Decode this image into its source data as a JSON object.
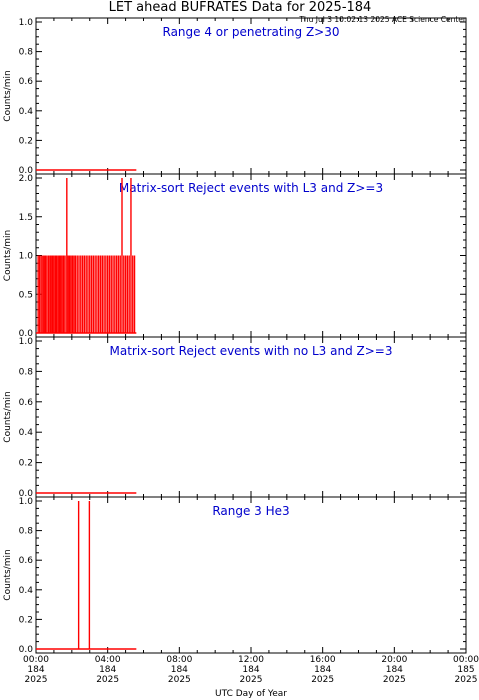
{
  "header": {
    "title": "LET ahead BUFRATES Data for 2025-184",
    "timestamp": "Thu Jul  3 10:02:13 2025 ACE Science Center"
  },
  "x_axis": {
    "label": "UTC Day of Year",
    "ticks": [
      {
        "time": "00:00",
        "day": "184",
        "year": "2025"
      },
      {
        "time": "04:00",
        "day": "184",
        "year": "2025"
      },
      {
        "time": "08:00",
        "day": "184",
        "year": "2025"
      },
      {
        "time": "12:00",
        "day": "184",
        "year": "2025"
      },
      {
        "time": "16:00",
        "day": "184",
        "year": "2025"
      },
      {
        "time": "20:00",
        "day": "184",
        "year": "2025"
      },
      {
        "time": "00:00",
        "day": "185",
        "year": "2025"
      }
    ]
  },
  "colors": {
    "data": "#ff0000",
    "panel_title": "#0000cc",
    "axes": "#000000"
  },
  "chart_data": [
    {
      "type": "line",
      "title": "Range 4 or   penetrating Z>30",
      "ylabel": "Counts/min",
      "ylim": [
        0,
        1
      ],
      "yticks": [
        "0.0",
        "0.2",
        "0.4",
        "0.6",
        "0.8",
        "1.0"
      ],
      "xlim_hours": [
        0,
        24
      ],
      "series": [
        {
          "segments": [
            [
              [
                0.0,
                0
              ],
              [
                5.6,
                0
              ]
            ]
          ],
          "spikes": []
        }
      ]
    },
    {
      "type": "line",
      "title": "Matrix-sort Reject events with L3 and Z>=3",
      "ylabel": "Counts/min",
      "ylim": [
        0,
        2
      ],
      "yticks": [
        "0.0",
        "0.5",
        "1.0",
        "1.5",
        "2.0"
      ],
      "xlim_hours": [
        0,
        24
      ],
      "series": [
        {
          "segments": [
            [
              [
                0.0,
                0
              ],
              [
                5.6,
                0
              ]
            ]
          ],
          "spikes": [
            {
              "x": 0.12,
              "y": 1
            },
            {
              "x": 0.2,
              "y": 1
            },
            {
              "x": 0.29,
              "y": 1
            },
            {
              "x": 0.38,
              "y": 1
            },
            {
              "x": 0.46,
              "y": 1
            },
            {
              "x": 0.53,
              "y": 1
            },
            {
              "x": 0.61,
              "y": 1
            },
            {
              "x": 0.7,
              "y": 1
            },
            {
              "x": 0.78,
              "y": 1
            },
            {
              "x": 0.85,
              "y": 1
            },
            {
              "x": 0.93,
              "y": 1
            },
            {
              "x": 1.0,
              "y": 1
            },
            {
              "x": 1.08,
              "y": 1
            },
            {
              "x": 1.15,
              "y": 1
            },
            {
              "x": 1.23,
              "y": 1
            },
            {
              "x": 1.3,
              "y": 1
            },
            {
              "x": 1.38,
              "y": 1
            },
            {
              "x": 1.46,
              "y": 1
            },
            {
              "x": 1.54,
              "y": 1
            },
            {
              "x": 1.62,
              "y": 1
            },
            {
              "x": 1.72,
              "y": 2
            },
            {
              "x": 1.8,
              "y": 1
            },
            {
              "x": 1.88,
              "y": 1
            },
            {
              "x": 1.96,
              "y": 1
            },
            {
              "x": 2.04,
              "y": 1
            },
            {
              "x": 2.12,
              "y": 1
            },
            {
              "x": 2.2,
              "y": 1
            },
            {
              "x": 2.3,
              "y": 1
            },
            {
              "x": 2.4,
              "y": 1
            },
            {
              "x": 2.5,
              "y": 1
            },
            {
              "x": 2.6,
              "y": 1
            },
            {
              "x": 2.7,
              "y": 1
            },
            {
              "x": 2.8,
              "y": 1
            },
            {
              "x": 2.9,
              "y": 1
            },
            {
              "x": 3.0,
              "y": 1
            },
            {
              "x": 3.1,
              "y": 1
            },
            {
              "x": 3.2,
              "y": 1
            },
            {
              "x": 3.3,
              "y": 1
            },
            {
              "x": 3.4,
              "y": 1
            },
            {
              "x": 3.5,
              "y": 1
            },
            {
              "x": 3.6,
              "y": 1
            },
            {
              "x": 3.7,
              "y": 1
            },
            {
              "x": 3.8,
              "y": 1
            },
            {
              "x": 3.9,
              "y": 1
            },
            {
              "x": 4.0,
              "y": 1
            },
            {
              "x": 4.1,
              "y": 1
            },
            {
              "x": 4.2,
              "y": 1
            },
            {
              "x": 4.3,
              "y": 1
            },
            {
              "x": 4.4,
              "y": 1
            },
            {
              "x": 4.5,
              "y": 1
            },
            {
              "x": 4.6,
              "y": 1
            },
            {
              "x": 4.7,
              "y": 1
            },
            {
              "x": 4.8,
              "y": 2
            },
            {
              "x": 4.9,
              "y": 1
            },
            {
              "x": 5.0,
              "y": 1
            },
            {
              "x": 5.1,
              "y": 1
            },
            {
              "x": 5.2,
              "y": 1
            },
            {
              "x": 5.3,
              "y": 2
            },
            {
              "x": 5.4,
              "y": 1
            },
            {
              "x": 5.5,
              "y": 1
            }
          ]
        }
      ]
    },
    {
      "type": "line",
      "title": "Matrix-sort Reject events with no L3 and Z>=3",
      "ylabel": "Counts/min",
      "ylim": [
        0,
        1
      ],
      "yticks": [
        "0.0",
        "0.2",
        "0.4",
        "0.6",
        "0.8",
        "1.0"
      ],
      "xlim_hours": [
        0,
        24
      ],
      "series": [
        {
          "segments": [
            [
              [
                0.0,
                0
              ],
              [
                5.6,
                0
              ]
            ]
          ],
          "spikes": []
        }
      ]
    },
    {
      "type": "line",
      "title": "Range 3 He3",
      "ylabel": "Counts/min",
      "ylim": [
        0,
        1
      ],
      "yticks": [
        "0.0",
        "0.2",
        "0.4",
        "0.6",
        "0.8",
        "1.0"
      ],
      "xlim_hours": [
        0,
        24
      ],
      "series": [
        {
          "segments": [
            [
              [
                0.0,
                0
              ],
              [
                5.6,
                0
              ]
            ]
          ],
          "spikes": [
            {
              "x": 2.38,
              "y": 1
            },
            {
              "x": 2.98,
              "y": 1
            }
          ]
        }
      ]
    }
  ]
}
